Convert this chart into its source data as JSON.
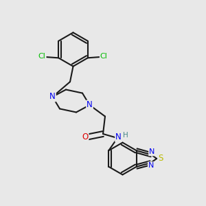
{
  "bg_color": "#e8e8e8",
  "bond_color": "#1a1a1a",
  "atom_colors": {
    "N": "#0000ee",
    "O": "#dd0000",
    "S": "#bbbb00",
    "Cl": "#00bb00",
    "H": "#448888",
    "C": "#1a1a1a"
  },
  "bond_width": 1.5,
  "font_size": 8.5
}
